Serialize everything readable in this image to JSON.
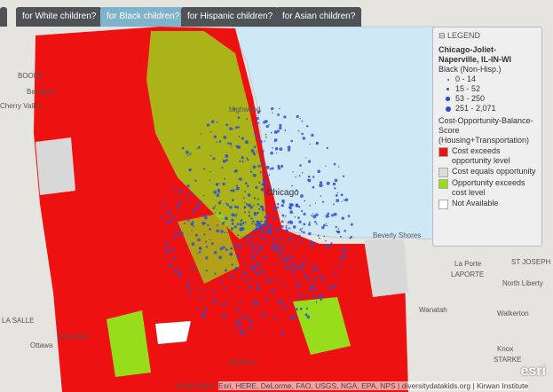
{
  "tabs": [
    "for White children?",
    "for Black children?",
    "for Hispanic children?",
    "for Asian children?"
  ],
  "legend": {
    "header": "LEGEND",
    "title": "Chicago-Joliet-Naperville, IL-IN-WI",
    "population_title": "Black (Non-Hisp.)",
    "population_items": [
      "0 - 14",
      "15 - 52",
      "53 - 250",
      "251 - 2,071"
    ],
    "score_title": "Cost-Opportunity-Balance-Score (Housing+Transportation)",
    "score_items": [
      "Cost exceeds opportunity level",
      "Cost equals opportunity",
      "Opportunity exceeds cost level",
      "Not Available"
    ]
  },
  "map_labels": [
    "BOONE",
    "Belvidere",
    "Cherry Valley",
    "Highwood",
    "Chicago",
    "Beverly Shores",
    "La Porte",
    "LAPORTE",
    "ST JOSEPH",
    "North Liberty",
    "Walkerton",
    "Wanatah",
    "Knox",
    "STARKE",
    "LA SALLE",
    "Marseilles",
    "Manteno",
    "KANKAKEE",
    "Ottawa"
  ],
  "attribution": "Esri, HERE, DeLorme, FAO, USGS, NGA, EPA, NPS | diversitydatakids.org | Kirwan Institute",
  "logo": "esri"
}
